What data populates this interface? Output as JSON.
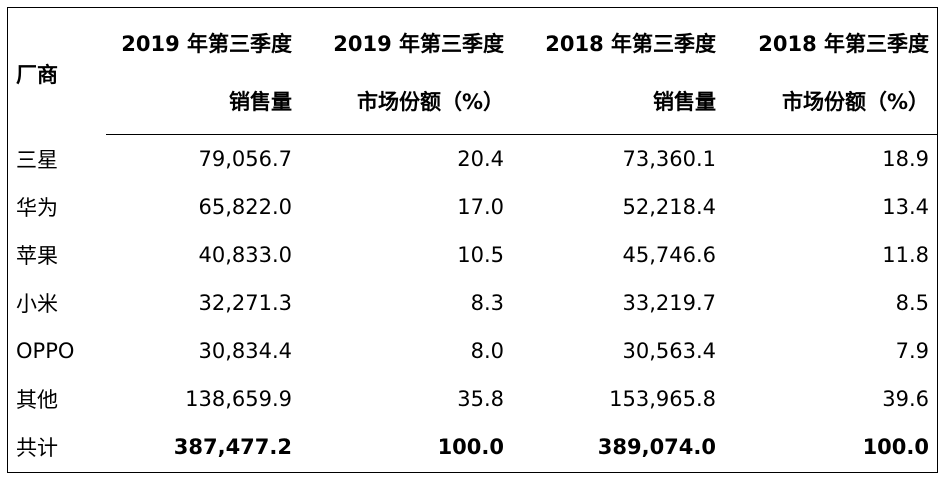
{
  "table": {
    "vendor_header": "厂商",
    "column_groups": [
      {
        "period": "2019 年第三季度",
        "metric": "销售量"
      },
      {
        "period": "2019 年第三季度",
        "metric": "市场份额（%）"
      },
      {
        "period": "2018 年第三季度",
        "metric": "销售量"
      },
      {
        "period": "2018 年第三季度",
        "metric": "市场份额（%）"
      }
    ],
    "rows": [
      {
        "vendor": "三星",
        "values": [
          "79,056.7",
          "20.4",
          "73,360.1",
          "18.9"
        ]
      },
      {
        "vendor": "华为",
        "values": [
          "65,822.0",
          "17.0",
          "52,218.4",
          "13.4"
        ]
      },
      {
        "vendor": "苹果",
        "values": [
          "40,833.0",
          "10.5",
          "45,746.6",
          "11.8"
        ]
      },
      {
        "vendor": "小米",
        "values": [
          "32,271.3",
          "8.3",
          "33,219.7",
          "8.5"
        ]
      },
      {
        "vendor": "OPPO",
        "values": [
          "30,834.4",
          "8.0",
          "30,563.4",
          "7.9"
        ]
      },
      {
        "vendor": "其他",
        "values": [
          "138,659.9",
          "35.8",
          "153,965.8",
          "39.6"
        ]
      }
    ],
    "total": {
      "vendor": "共计",
      "values": [
        "387,477.2",
        "100.0",
        "389,074.0",
        "100.0"
      ]
    }
  }
}
